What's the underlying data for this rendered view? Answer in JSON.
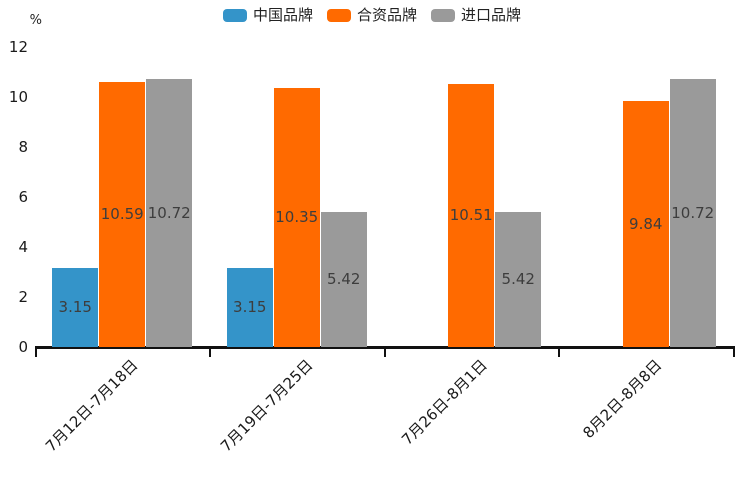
{
  "chart_data": {
    "type": "bar",
    "title": "",
    "ylabel": "%",
    "xlabel": "",
    "categories": [
      "7月12日-7月18日",
      "7月19日-7月25日",
      "7月26日-8月1日",
      "8月2日-8月8日"
    ],
    "series": [
      {
        "name": "中国品牌",
        "color": "#3494c9",
        "values": [
          3.15,
          3.15,
          null,
          null
        ]
      },
      {
        "name": "合资品牌",
        "color": "#ff6a00",
        "values": [
          10.59,
          10.35,
          10.51,
          9.84
        ]
      },
      {
        "name": "进口品牌",
        "color": "#9a9a9a",
        "values": [
          10.72,
          5.42,
          5.42,
          10.72
        ]
      }
    ],
    "ylim": [
      0,
      12
    ],
    "yticks": [
      0,
      2,
      4,
      6,
      8,
      10,
      12
    ],
    "grid": false,
    "legend_position": "top",
    "value_labels": "inside-center",
    "x_label_rotation": 45,
    "colors": {
      "axis": "#111111",
      "tick_text": "#1a1a1a",
      "value_label_text": "#3d3d3d",
      "legend_text": "#222222",
      "background": "#ffffff"
    }
  }
}
